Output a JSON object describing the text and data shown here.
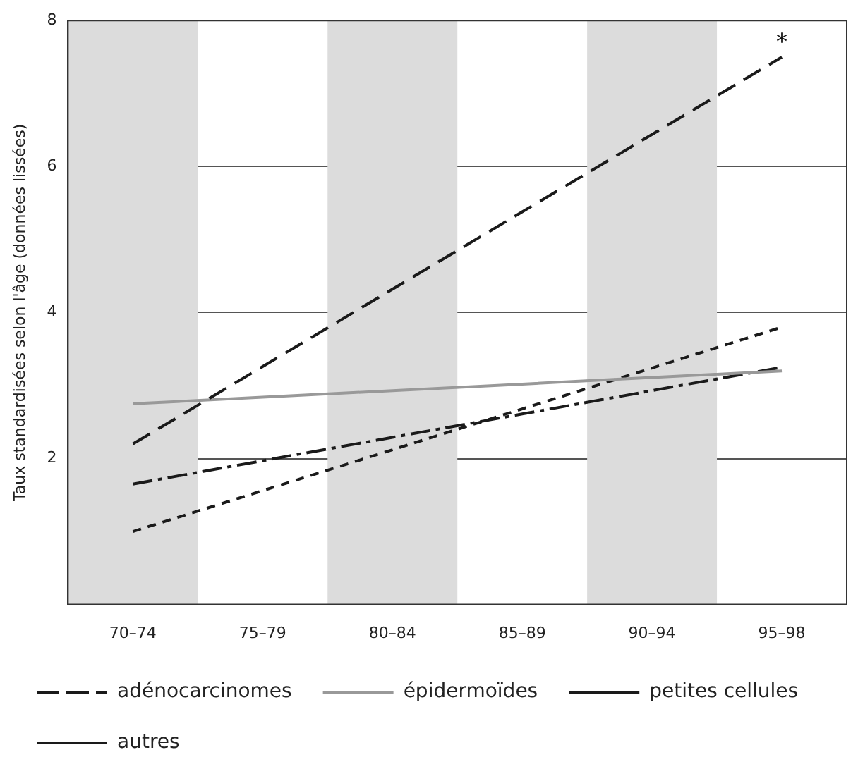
{
  "chart_data": {
    "type": "line",
    "ylabel": "Taux standardisées selon l'âge (données lissées)",
    "categories": [
      "70–74",
      "75–79",
      "80–84",
      "85–89",
      "90–94",
      "95–98"
    ],
    "series": [
      {
        "name": "adénocarcinomes",
        "color": "#1a1a1a",
        "line_style": "dashed",
        "values": [
          2.2,
          3.26,
          4.32,
          5.38,
          6.44,
          7.5
        ]
      },
      {
        "name": "épidermoïdes",
        "color": "#999999",
        "line_style": "solid",
        "values": [
          2.75,
          2.84,
          2.93,
          3.02,
          3.11,
          3.2
        ]
      },
      {
        "name": "petites cellules",
        "color": "#1a1a1a",
        "line_style": "dashdot",
        "values": [
          1.65,
          1.97,
          2.29,
          2.61,
          2.93,
          3.25
        ]
      },
      {
        "name": "autres",
        "color": "#1a1a1a",
        "line_style": "dotted",
        "values": [
          1.0,
          1.56,
          2.12,
          2.68,
          3.24,
          3.8
        ]
      }
    ],
    "ylim": [
      0,
      8
    ],
    "yticks": [
      2,
      4,
      6,
      8
    ],
    "grid": "y",
    "legend": "bottom",
    "marker": "none",
    "bands": [
      {
        "axis": "x",
        "from": "70–74",
        "to": "70–74",
        "color": "#dcdcdc"
      },
      {
        "axis": "x",
        "from": "80–84",
        "to": "80–84",
        "color": "#dcdcdc"
      },
      {
        "axis": "x",
        "from": "90–94",
        "to": "90–94",
        "color": "#dcdcdc"
      }
    ],
    "annotations": [
      "*"
    ]
  }
}
